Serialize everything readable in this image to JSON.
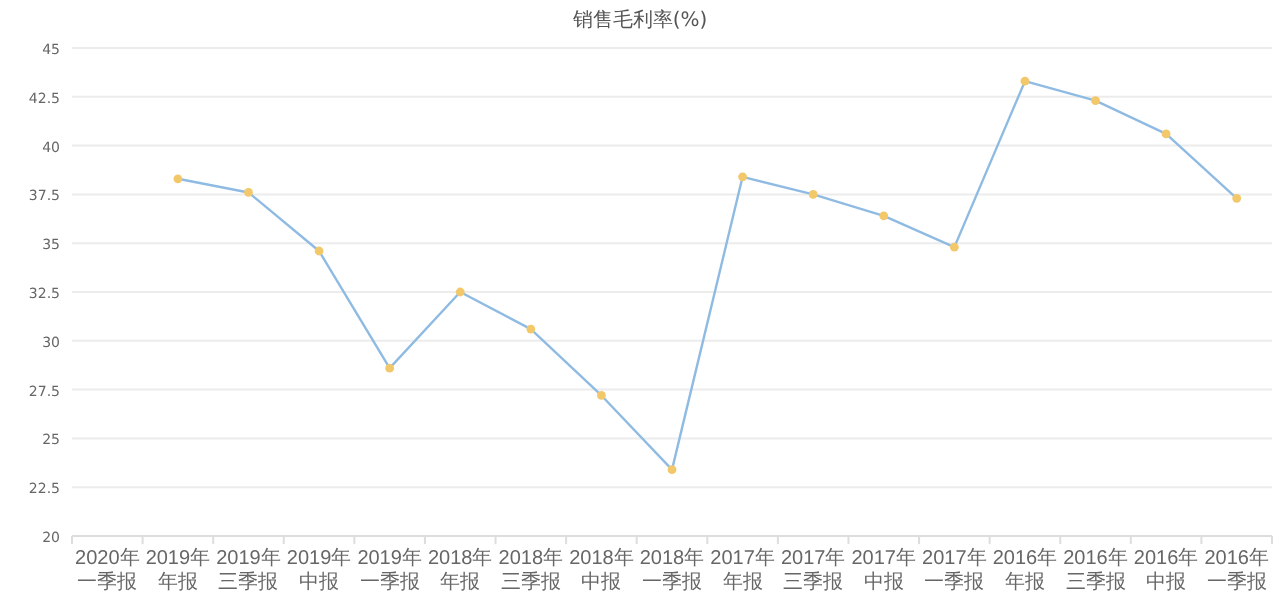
{
  "chart_data": {
    "type": "line",
    "title": "销售毛利率(%)",
    "categories": [
      "2020年一季报",
      "2019年年报",
      "2019年三季报",
      "2019年中报",
      "2019年一季报",
      "2018年年报",
      "2018年三季报",
      "2018年中报",
      "2018年一季报",
      "2017年年报",
      "2017年三季报",
      "2017年中报",
      "2017年一季报",
      "2016年年报",
      "2016年三季报",
      "2016年中报",
      "2016年一季报"
    ],
    "series": [
      {
        "color": "#8fbbe3",
        "colors": [
          null,
          "#f3c86a",
          "#f3c86a",
          "#f3c86a",
          "#f3c86a",
          "#f3c86a",
          "#f3c86a",
          "#f3c86a",
          "#f3c86a",
          "#f3c86a",
          "#f3c86a",
          "#f3c86a",
          "#f3c86a",
          "#f3c86a",
          "#f3c86a",
          "#f3c86a",
          "#f3c86a"
        ],
        "values": [
          null,
          38.3,
          37.6,
          34.6,
          28.6,
          32.5,
          30.6,
          27.2,
          23.4,
          38.4,
          37.5,
          36.4,
          34.8,
          43.3,
          42.3,
          40.6,
          37.3
        ]
      }
    ],
    "ylim": [
      20,
      45
    ],
    "yticks": [
      20,
      22.5,
      25,
      27.5,
      30,
      32.5,
      35,
      37.5,
      40,
      42.5,
      45
    ],
    "grid": "y",
    "marker": "circle",
    "line_style": "solid"
  }
}
